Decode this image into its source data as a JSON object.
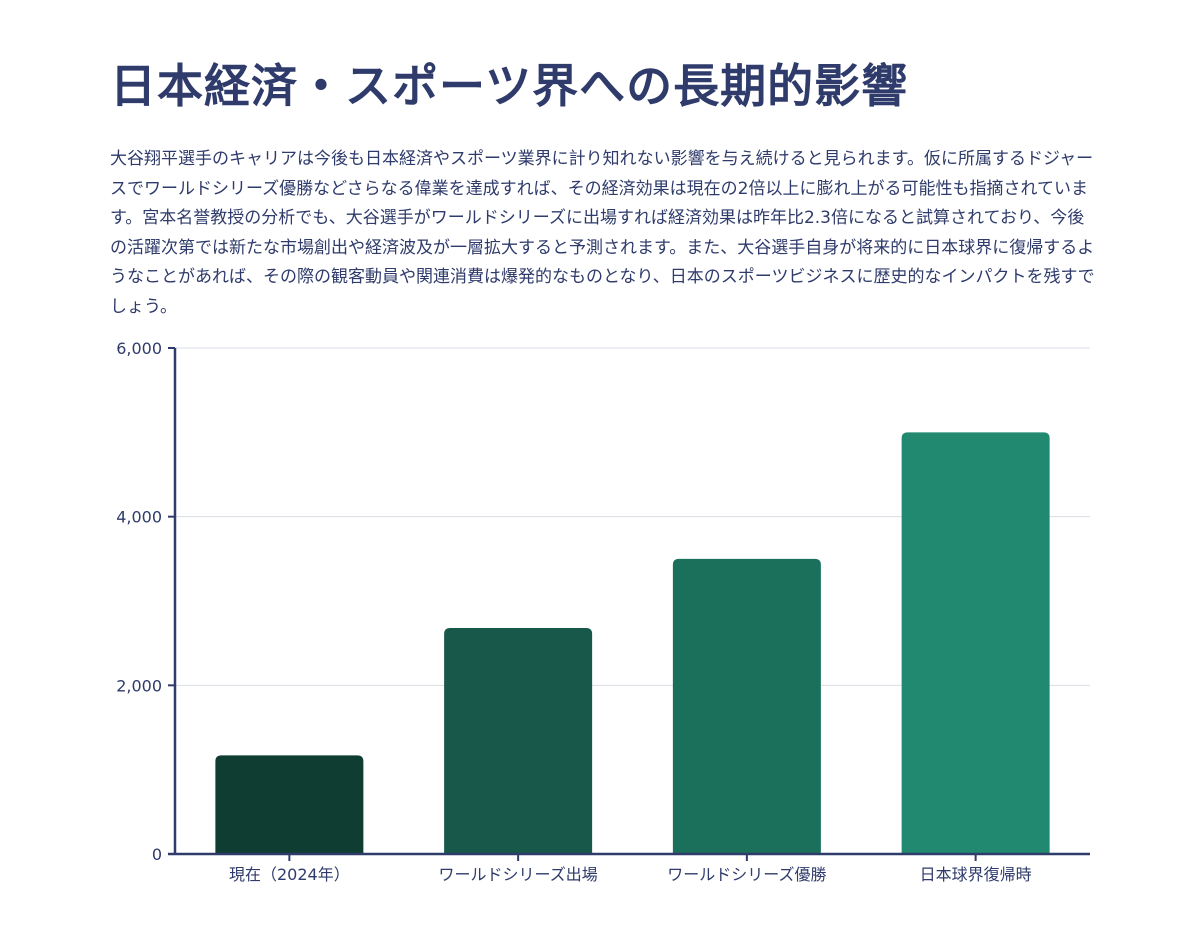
{
  "page": {
    "title": "日本経済・スポーツ界への長期的影響",
    "description": "大谷翔平選手のキャリアは今後も日本経済やスポーツ業界に計り知れない影響を与え続けると見られます。仮に所属するドジャースでワールドシリーズ優勝などさらなる偉業を達成すれば、その経済効果は現在の2倍以上に膨れ上がる可能性も指摘されています。宮本名誉教授の分析でも、大谷選手がワールドシリーズに出場すれば経済効果は昨年比2.3倍になると試算されており、今後の活躍次第では新たな市場創出や経済波及が一層拡大すると予測されます。また、大谷選手自身が将来的に日本球界に復帰するようなことがあれば、その際の観客動員や関連消費は爆発的なものとなり、日本のスポーツビジネスに歴史的なインパクトを残すでしょう。"
  },
  "chart_data": {
    "type": "bar",
    "title": "",
    "xlabel": "",
    "ylabel": "",
    "categories": [
      "現在（2024年）",
      "ワールドシリーズ出場",
      "ワールドシリーズ優勝",
      "日本球界復帰時"
    ],
    "values": [
      1170,
      2680,
      3500,
      5000
    ],
    "ylim": [
      0,
      6000
    ],
    "yticks": [
      0,
      2000,
      4000,
      6000
    ],
    "ytick_labels": [
      "0",
      "2,000",
      "4,000",
      "6,000"
    ],
    "grid": true,
    "legend": "none",
    "colors": [
      "#0f3d32",
      "#17584a",
      "#1b705c",
      "#20896f"
    ],
    "axis_color": "#2f3b6b",
    "grid_color": "#d9dde3"
  }
}
